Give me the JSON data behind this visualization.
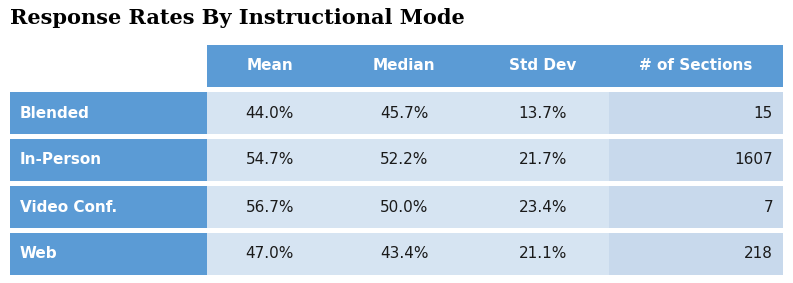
{
  "title": "Response Rates By Instructional Mode",
  "title_fontsize": 15,
  "col_headers": [
    "",
    "Mean",
    "Median",
    "Std Dev",
    "# of Sections"
  ],
  "row_labels": [
    "Blended",
    "In-Person",
    "Video Conf.",
    "Web"
  ],
  "table_data": [
    [
      "44.0%",
      "45.7%",
      "13.7%",
      "15"
    ],
    [
      "54.7%",
      "52.2%",
      "21.7%",
      "1607"
    ],
    [
      "56.7%",
      "50.0%",
      "23.4%",
      "7"
    ],
    [
      "47.0%",
      "43.4%",
      "21.1%",
      "218"
    ]
  ],
  "header_bg": "#5B9BD5",
  "header_text": "#FFFFFF",
  "row_label_bg": "#5B9BD5",
  "row_label_text": "#FFFFFF",
  "data_cell_bg": "#D6E4F2",
  "sections_cell_bg": "#C8D9EC",
  "data_text_color": "#1A1A1A",
  "background_color": "#FFFFFF",
  "gap_color": "#FFFFFF",
  "fig_width": 7.93,
  "fig_height": 2.83,
  "dpi": 100
}
